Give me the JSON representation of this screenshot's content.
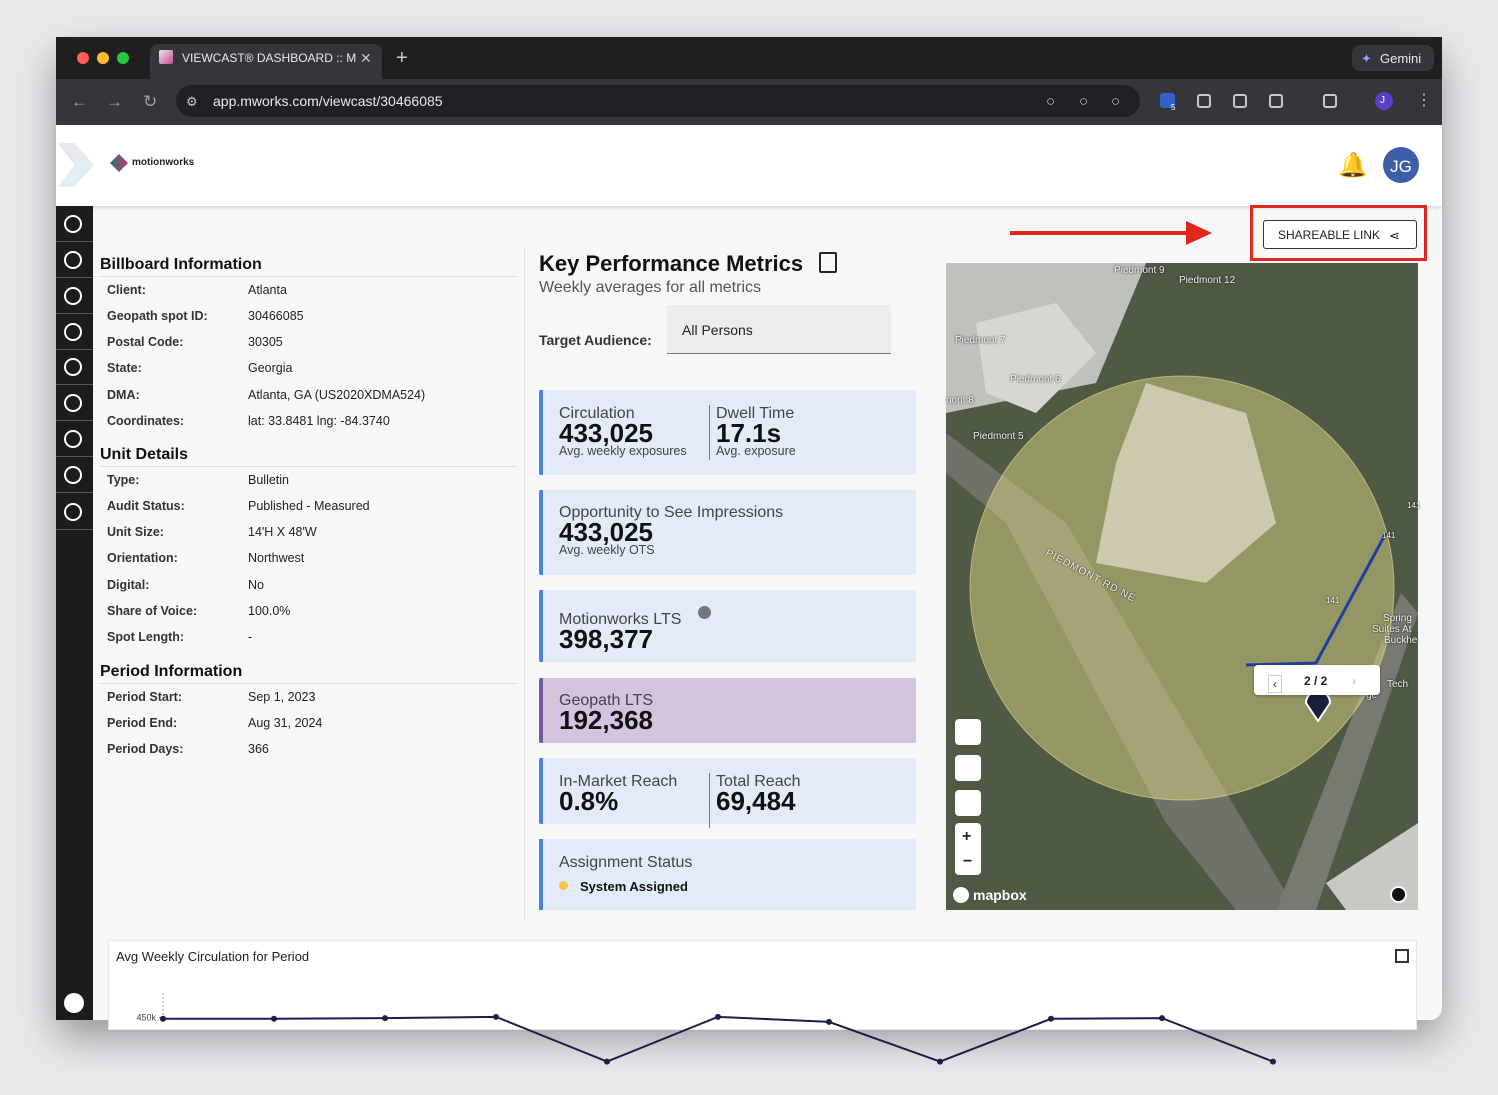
{
  "browser": {
    "tab_title": "VIEWCAST® DASHBOARD :: M",
    "url": "app.mworks.com/viewcast/30466085",
    "gemini": "Gemini",
    "extension_badge": "5",
    "profile": "J"
  },
  "header": {
    "logo": "motionworks",
    "avatar": "JG"
  },
  "share_button": "SHAREABLE LINK",
  "sections": [
    {
      "title": "Billboard Information",
      "rows": [
        [
          "Client:",
          "Atlanta"
        ],
        [
          "Geopath spot ID:",
          "30466085"
        ],
        [
          "Postal Code:",
          "30305"
        ],
        [
          "State:",
          "Georgia"
        ],
        [
          "DMA:",
          "Atlanta, GA (US2020XDMA524)"
        ],
        [
          "Coordinates:",
          "lat: 33.8481 lng: -84.3740"
        ]
      ]
    },
    {
      "title": "Unit Details",
      "rows": [
        [
          "Type:",
          "Bulletin"
        ],
        [
          "Audit Status:",
          "Published - Measured"
        ],
        [
          "Unit Size:",
          "14'H X 48'W"
        ],
        [
          "Orientation:",
          "Northwest"
        ],
        [
          "Digital:",
          "No"
        ],
        [
          "Share of Voice:",
          "100.0%"
        ],
        [
          "Spot Length:",
          "-"
        ]
      ]
    },
    {
      "title": "Period Information",
      "rows": [
        [
          "Period Start:",
          "Sep 1, 2023"
        ],
        [
          "Period End:",
          "Aug 31, 2024"
        ],
        [
          "Period Days:",
          "366"
        ]
      ]
    }
  ],
  "kpi": {
    "title": "Key Performance Metrics",
    "subtitle": "Weekly averages for all metrics",
    "audience_label": "Target Audience:",
    "audience_value": "All Persons",
    "cards": [
      {
        "metrics": [
          {
            "label": "Circulation",
            "value": "433,025",
            "note": "Avg. weekly exposures"
          },
          {
            "label": "Dwell Time",
            "value": "17.1s",
            "note": "Avg. exposure"
          }
        ]
      },
      {
        "metrics": [
          {
            "label": "Opportunity to See Impressions",
            "value": "433,025",
            "note": "Avg. weekly OTS"
          }
        ]
      },
      {
        "metrics": [
          {
            "label": "Motionworks LTS",
            "value": "398,377"
          }
        ],
        "info": true
      },
      {
        "metrics": [
          {
            "label": "Geopath LTS",
            "value": "192,368"
          }
        ],
        "highlight": true
      },
      {
        "metrics": [
          {
            "label": "In-Market Reach",
            "value": "0.8%"
          },
          {
            "label": "Total Reach",
            "value": "69,484"
          }
        ]
      }
    ],
    "status": {
      "label": "Assignment Status",
      "value": "System Assigned"
    }
  },
  "map": {
    "labels": [
      "Piedmont 9",
      "Piedmont 12",
      "Piedmont 7",
      "Piedmont 6",
      "nont 8",
      "Piedmont 5",
      "PIEDMONT RD NE",
      "141",
      "141",
      "141",
      "Spring",
      "Suites At",
      "Buckhe",
      "Tech",
      "ge"
    ],
    "pager": "2 / 2",
    "attribution": "mapbox"
  },
  "chart_data": {
    "type": "line",
    "title": "Avg Weekly Circulation for Period",
    "ylim": [
      0,
      500000
    ],
    "yticks": [
      {
        "value": 450000,
        "label": "450k"
      }
    ],
    "color": "#1b1f4a",
    "values": [
      448000,
      448000,
      449000,
      451000,
      380000,
      451000,
      443000,
      380000,
      448000,
      449000,
      380000
    ]
  }
}
